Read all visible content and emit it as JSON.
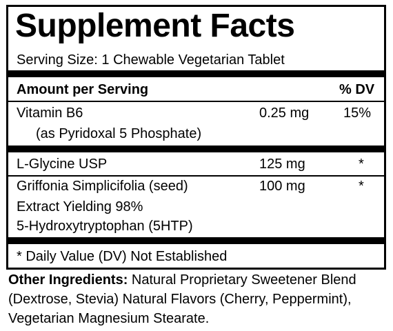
{
  "title": "Supplement Facts",
  "serving_size": "Serving Size:  1 Chewable Vegetarian Tablet",
  "header": {
    "amount_label": "Amount per Serving",
    "dv_label": "% DV"
  },
  "rows": [
    {
      "name": "Vitamin B6",
      "sub": [
        "(as Pyridoxal 5 Phosphate)"
      ],
      "amount": "0.25 mg",
      "dv": "15%"
    },
    {
      "name": "L-Glycine USP",
      "sub": [],
      "amount": "125 mg",
      "dv": "*"
    },
    {
      "name": "Griffonia Simplicifolia (seed)",
      "sub": [
        "Extract Yielding 98%",
        "5-Hydroxytryptophan (5HTP)"
      ],
      "amount": "100 mg",
      "dv": "*"
    }
  ],
  "footnote": "* Daily Value (DV) Not Established",
  "other_ingredients": {
    "label": "Other Ingredients:",
    "text": " Natural Proprietary Sweetener Blend (Dextrose, Stevia) Natural Flavors (Cherry, Peppermint), Vegetarian Magnesium Stearate."
  }
}
